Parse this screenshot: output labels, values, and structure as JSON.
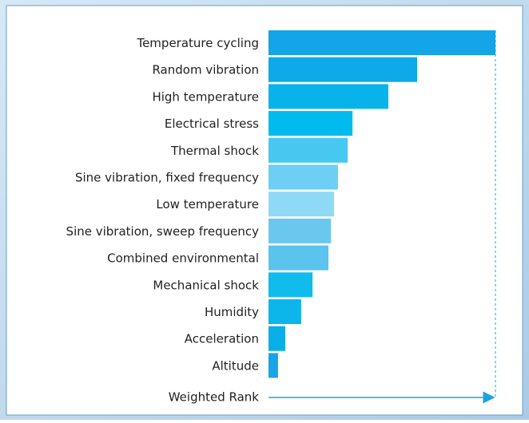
{
  "chart_data": {
    "type": "barh",
    "categories": [
      "Temperature cycling",
      "Random vibration",
      "High temperature",
      "Electrical stress",
      "Thermal shock",
      "Sine vibration, fixed frequency",
      "Low temperature",
      "Sine vibration, sweep frequency",
      "Combined environmental",
      "Mechanical shock",
      "Humidity",
      "Acceleration",
      "Altitude"
    ],
    "values": [
      100,
      65.5,
      52.8,
      37,
      34.9,
      30.6,
      28.9,
      27.5,
      26.4,
      19.4,
      14.4,
      7.4,
      4.2
    ],
    "colors": [
      "#14a4e8",
      "#0ea9e9",
      "#08b3ec",
      "#02bbee",
      "#46c8f1",
      "#6ccff3",
      "#8ed9f6",
      "#6ac8ef",
      "#5ac3ee",
      "#10bcee",
      "#0cb5ea",
      "#0aaee8",
      "#18a5e8"
    ],
    "xlabel": "Weighted Rank",
    "xlim": [
      0,
      100
    ]
  }
}
